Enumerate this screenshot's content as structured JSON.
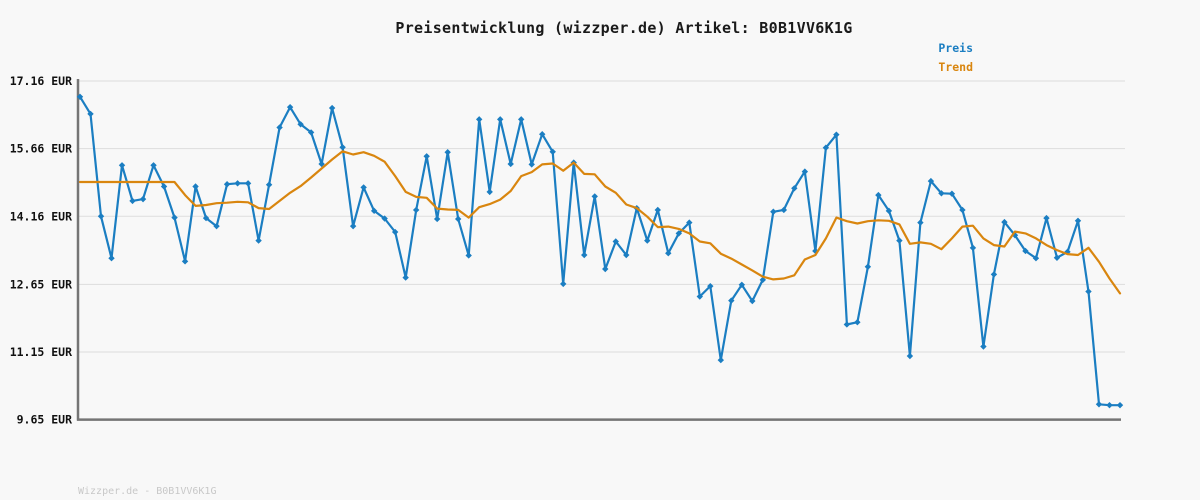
{
  "title": "Preisentwicklung (wizzper.de) Artikel: B0B1VV6K1G",
  "watermark": "Wizzper.de - B0B1VV6K1G",
  "legend": [
    {
      "label": "Preis",
      "color": "#1b7ec2"
    },
    {
      "label": "Trend",
      "color": "#d9860f"
    }
  ],
  "colors": {
    "price": "#1b7ec2",
    "trend": "#d9860f",
    "grid": "#dddddd",
    "axis": "#757575",
    "background": "#f8f8f8",
    "title_text": "#1a1a1a",
    "tick_text": "#111111",
    "watermark_text": "#c8c8c8"
  },
  "y_axis": {
    "tick_labels": [
      "17.16 EUR",
      "15.66 EUR",
      "14.16 EUR",
      "12.65 EUR",
      "11.15 EUR",
      "9.65 EUR"
    ],
    "tick_values": [
      17.16,
      15.66,
      14.16,
      12.65,
      11.15,
      9.65
    ],
    "unit": "EUR"
  },
  "chart_data": {
    "type": "line",
    "title": "Preisentwicklung (wizzper.de) Artikel: B0B1VV6K1G",
    "xlabel": "",
    "ylabel": "EUR",
    "ylim": [
      9.65,
      17.16
    ],
    "grid": "horizontal",
    "legend_position": "top-right",
    "x": "time index 0-99 (evenly spaced price observations)",
    "series": [
      {
        "name": "Preis",
        "color": "#1b7ec2",
        "marker": "diamond",
        "values": [
          16.81,
          16.43,
          14.16,
          13.23,
          15.29,
          14.5,
          14.54,
          15.29,
          14.82,
          14.13,
          13.16,
          14.82,
          14.12,
          13.94,
          14.87,
          14.89,
          14.89,
          13.62,
          14.86,
          16.13,
          16.58,
          16.2,
          16.02,
          15.32,
          16.56,
          15.69,
          13.94,
          14.8,
          14.28,
          14.11,
          13.81,
          12.8,
          14.3,
          15.49,
          14.1,
          15.58,
          14.1,
          13.29,
          16.31,
          14.7,
          16.31,
          15.32,
          16.31,
          15.31,
          15.98,
          15.59,
          12.66,
          15.35,
          13.3,
          14.6,
          12.99,
          13.6,
          13.3,
          14.34,
          13.62,
          14.3,
          13.34,
          13.78,
          14.02,
          12.38,
          12.61,
          10.97,
          12.29,
          12.64,
          12.28,
          12.75,
          14.26,
          14.3,
          14.78,
          15.15,
          13.39,
          15.68,
          15.97,
          11.76,
          11.81,
          13.04,
          14.63,
          14.28,
          13.62,
          11.06,
          14.02,
          14.94,
          14.67,
          14.66,
          14.3,
          13.46,
          11.27,
          12.87,
          14.03,
          13.74,
          13.39,
          13.23,
          14.12,
          13.24,
          13.37,
          14.06,
          12.49,
          9.99,
          9.97,
          9.97
        ]
      },
      {
        "name": "Trend",
        "color": "#d9860f",
        "marker": "none",
        "values": [
          14.92,
          14.92,
          14.92,
          14.92,
          14.92,
          14.92,
          14.92,
          14.92,
          14.92,
          14.92,
          14.63,
          14.39,
          14.41,
          14.45,
          14.46,
          14.48,
          14.47,
          14.34,
          14.32,
          14.5,
          14.68,
          14.83,
          15.02,
          15.22,
          15.42,
          15.6,
          15.53,
          15.58,
          15.5,
          15.37,
          15.05,
          14.7,
          14.59,
          14.57,
          14.33,
          14.31,
          14.3,
          14.13,
          14.36,
          14.43,
          14.53,
          14.72,
          15.05,
          15.14,
          15.31,
          15.33,
          15.17,
          15.35,
          15.1,
          15.09,
          14.82,
          14.68,
          14.42,
          14.34,
          14.15,
          13.92,
          13.93,
          13.88,
          13.78,
          13.6,
          13.56,
          13.33,
          13.22,
          13.09,
          12.96,
          12.82,
          12.76,
          12.78,
          12.85,
          13.2,
          13.3,
          13.67,
          14.13,
          14.05,
          14.0,
          14.05,
          14.07,
          14.06,
          13.98,
          13.55,
          13.58,
          13.55,
          13.43,
          13.67,
          13.93,
          13.95,
          13.67,
          13.52,
          13.49,
          13.82,
          13.78,
          13.67,
          13.52,
          13.41,
          13.32,
          13.3,
          13.46,
          13.15,
          12.78,
          12.45
        ]
      }
    ]
  }
}
